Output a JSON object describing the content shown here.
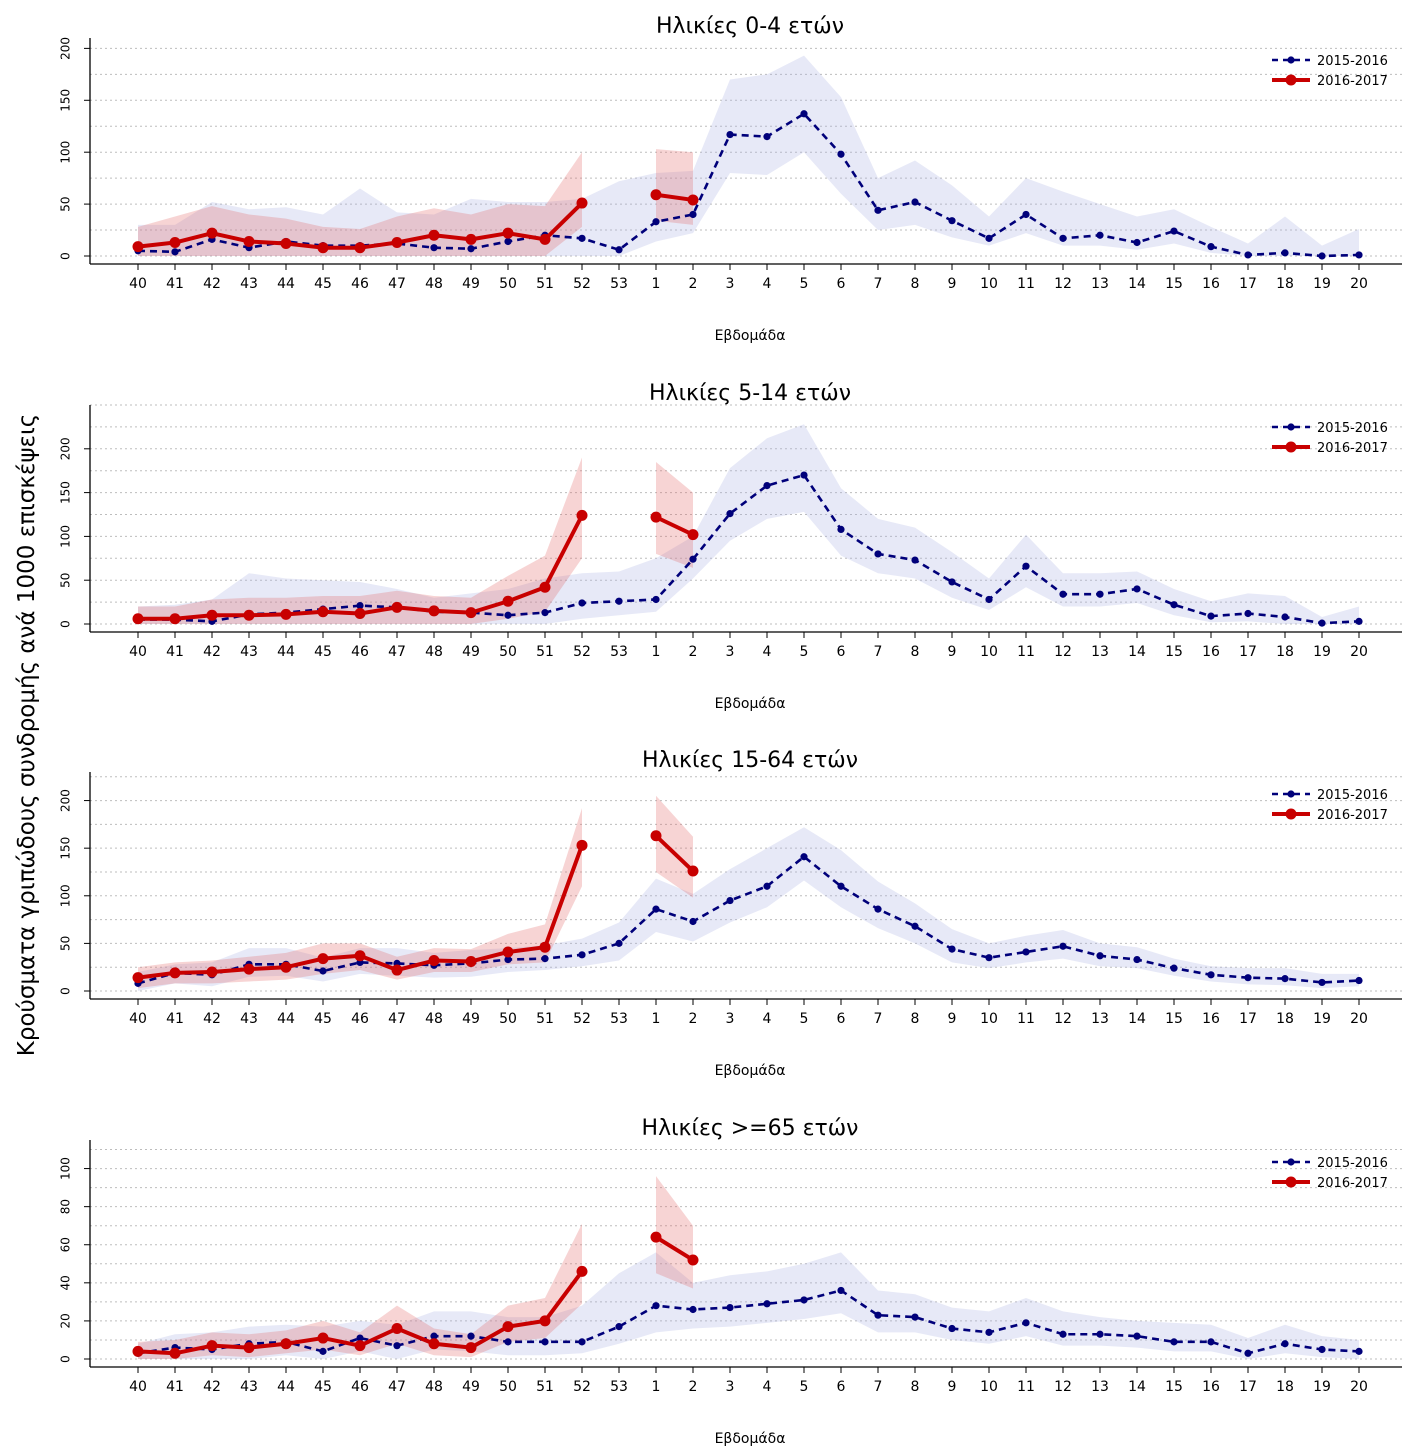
{
  "figure": {
    "ylabel": "Κρούσματα γριπώδους συνδρομής ανά 1000 επισκέψεις",
    "xlabel": "Εβδομάδα"
  },
  "chart_data": [
    {
      "type": "line",
      "title": "Ηλικίες 0-4 ετών",
      "xlabel": "Εβδομάδα",
      "ylabel": "Κρούσματα γριπώδους συνδρομής ανά 1000 επισκέψεις",
      "categories": [
        "40",
        "41",
        "42",
        "43",
        "44",
        "45",
        "46",
        "47",
        "48",
        "49",
        "50",
        "51",
        "52",
        "53",
        "1",
        "2",
        "3",
        "4",
        "5",
        "6",
        "7",
        "8",
        "9",
        "10",
        "11",
        "12",
        "13",
        "14",
        "15",
        "16",
        "17",
        "18",
        "19",
        "20"
      ],
      "yticks": [
        0,
        50,
        100,
        150,
        200
      ],
      "ylim": [
        0,
        210
      ],
      "legend_position": "top-right",
      "grid": "horizontal dotted",
      "series": [
        {
          "name": "2015-2016",
          "color": "#00007a",
          "style": "dashed",
          "values": [
            5,
            4,
            16,
            8,
            14,
            10,
            10,
            12,
            8,
            7,
            14,
            20,
            17,
            6,
            33,
            40,
            117,
            115,
            137,
            98,
            44,
            52,
            34,
            17,
            40,
            17,
            20,
            13,
            24,
            9,
            1,
            3,
            0,
            1
          ],
          "band_lower": [
            0,
            0,
            0,
            0,
            0,
            0,
            0,
            0,
            0,
            0,
            0,
            0,
            0,
            0,
            14,
            22,
            80,
            78,
            100,
            60,
            25,
            30,
            18,
            10,
            22,
            10,
            10,
            6,
            12,
            3,
            0,
            0,
            0,
            0
          ],
          "band_upper": [
            30,
            30,
            52,
            45,
            47,
            40,
            65,
            42,
            40,
            55,
            52,
            52,
            55,
            72,
            80,
            82,
            170,
            175,
            193,
            153,
            75,
            92,
            68,
            38,
            75,
            62,
            50,
            38,
            45,
            28,
            12,
            38,
            10,
            26
          ]
        },
        {
          "name": "2016-2017",
          "color": "#c80000",
          "style": "solid",
          "values": [
            9,
            13,
            22,
            14,
            12,
            8,
            8,
            13,
            20,
            16,
            22,
            16,
            51,
            null,
            59,
            54,
            null,
            null,
            null,
            null,
            null,
            null,
            null,
            null,
            null,
            null,
            null,
            null,
            null,
            null,
            null,
            null,
            null,
            null
          ],
          "band_lower": [
            0,
            0,
            0,
            0,
            0,
            0,
            0,
            0,
            0,
            0,
            0,
            0,
            28,
            null,
            34,
            30,
            null,
            null,
            null,
            null,
            null,
            null,
            null,
            null,
            null,
            null,
            null,
            null,
            null,
            null,
            null,
            null,
            null,
            null
          ],
          "band_upper": [
            28,
            38,
            48,
            40,
            36,
            28,
            26,
            38,
            46,
            40,
            50,
            48,
            100,
            null,
            103,
            100,
            null,
            null,
            null,
            null,
            null,
            null,
            null,
            null,
            null,
            null,
            null,
            null,
            null,
            null,
            null,
            null,
            null,
            null
          ]
        }
      ]
    },
    {
      "type": "line",
      "title": "Ηλικίες 5-14 ετών",
      "xlabel": "Εβδομάδα",
      "ylabel": "Κρούσματα γριπώδους συνδρομής ανά 1000 επισκέψεις",
      "categories": [
        "40",
        "41",
        "42",
        "43",
        "44",
        "45",
        "46",
        "47",
        "48",
        "49",
        "50",
        "51",
        "52",
        "53",
        "1",
        "2",
        "3",
        "4",
        "5",
        "6",
        "7",
        "8",
        "9",
        "10",
        "11",
        "12",
        "13",
        "14",
        "15",
        "16",
        "17",
        "18",
        "19",
        "20"
      ],
      "yticks": [
        0,
        50,
        100,
        150,
        200
      ],
      "ylim": [
        0,
        250
      ],
      "legend_position": "top-right",
      "grid": "horizontal dotted",
      "series": [
        {
          "name": "2015-2016",
          "color": "#00007a",
          "style": "dashed",
          "values": [
            5,
            5,
            3,
            11,
            13,
            17,
            21,
            19,
            14,
            13,
            10,
            13,
            24,
            26,
            28,
            74,
            126,
            158,
            170,
            108,
            80,
            73,
            48,
            28,
            66,
            34,
            34,
            40,
            22,
            9,
            12,
            8,
            1,
            3
          ],
          "band_lower": [
            0,
            0,
            0,
            0,
            0,
            0,
            0,
            0,
            0,
            0,
            0,
            0,
            6,
            10,
            14,
            52,
            95,
            120,
            128,
            78,
            58,
            52,
            30,
            16,
            42,
            20,
            20,
            24,
            10,
            2,
            3,
            0,
            0,
            0
          ],
          "band_upper": [
            20,
            22,
            28,
            58,
            52,
            50,
            48,
            40,
            30,
            35,
            40,
            52,
            58,
            60,
            75,
            100,
            178,
            212,
            228,
            155,
            120,
            110,
            82,
            52,
            102,
            58,
            58,
            60,
            40,
            26,
            35,
            32,
            8,
            20
          ]
        },
        {
          "name": "2016-2017",
          "color": "#c80000",
          "style": "solid",
          "values": [
            6,
            6,
            10,
            10,
            11,
            14,
            12,
            19,
            15,
            13,
            26,
            42,
            124,
            null,
            122,
            102,
            null,
            null,
            null,
            null,
            null,
            null,
            null,
            null,
            null,
            null,
            null,
            null,
            null,
            null,
            null,
            null,
            null,
            null
          ],
          "band_lower": [
            0,
            0,
            0,
            0,
            0,
            0,
            0,
            0,
            0,
            0,
            6,
            14,
            75,
            null,
            80,
            64,
            null,
            null,
            null,
            null,
            null,
            null,
            null,
            null,
            null,
            null,
            null,
            null,
            null,
            null,
            null,
            null,
            null,
            null
          ],
          "band_upper": [
            20,
            20,
            28,
            30,
            30,
            32,
            32,
            38,
            32,
            30,
            55,
            78,
            190,
            null,
            185,
            150,
            null,
            null,
            null,
            null,
            null,
            null,
            null,
            null,
            null,
            null,
            null,
            null,
            null,
            null,
            null,
            null,
            null,
            null
          ]
        }
      ]
    },
    {
      "type": "line",
      "title": "Ηλικίες 15-64 ετών",
      "xlabel": "Εβδομάδα",
      "ylabel": "Κρούσματα γριπώδους συνδρομής ανά 1000 επισκέψεις",
      "categories": [
        "40",
        "41",
        "42",
        "43",
        "44",
        "45",
        "46",
        "47",
        "48",
        "49",
        "50",
        "51",
        "52",
        "53",
        "1",
        "2",
        "3",
        "4",
        "5",
        "6",
        "7",
        "8",
        "9",
        "10",
        "11",
        "12",
        "13",
        "14",
        "15",
        "16",
        "17",
        "18",
        "19",
        "20"
      ],
      "yticks": [
        0,
        50,
        100,
        150,
        200
      ],
      "ylim": [
        0,
        230
      ],
      "legend_position": "top-right",
      "grid": "horizontal dotted",
      "series": [
        {
          "name": "2015-2016",
          "color": "#00007a",
          "style": "dashed",
          "values": [
            8,
            19,
            17,
            28,
            28,
            21,
            30,
            29,
            27,
            29,
            33,
            34,
            38,
            50,
            86,
            73,
            95,
            110,
            141,
            110,
            86,
            68,
            44,
            35,
            41,
            47,
            37,
            33,
            24,
            17,
            14,
            13,
            9,
            11
          ],
          "band_lower": [
            0,
            8,
            5,
            15,
            16,
            10,
            18,
            16,
            14,
            15,
            20,
            22,
            26,
            32,
            62,
            52,
            72,
            88,
            116,
            88,
            66,
            50,
            30,
            24,
            30,
            34,
            26,
            24,
            16,
            10,
            7,
            6,
            3,
            5
          ],
          "band_upper": [
            20,
            28,
            30,
            45,
            45,
            35,
            45,
            45,
            40,
            43,
            45,
            48,
            55,
            72,
            118,
            102,
            128,
            150,
            172,
            148,
            115,
            92,
            65,
            50,
            58,
            64,
            50,
            46,
            34,
            26,
            24,
            24,
            18,
            18
          ]
        },
        {
          "name": "2016-2017",
          "color": "#c80000",
          "style": "solid",
          "values": [
            14,
            19,
            20,
            23,
            25,
            34,
            37,
            22,
            32,
            31,
            41,
            46,
            153,
            null,
            163,
            126,
            null,
            null,
            null,
            null,
            null,
            null,
            null,
            null,
            null,
            null,
            null,
            null,
            null,
            null,
            null,
            null,
            null,
            null
          ],
          "band_lower": [
            3,
            8,
            8,
            10,
            12,
            18,
            22,
            12,
            20,
            20,
            28,
            30,
            110,
            null,
            125,
            98,
            null,
            null,
            null,
            null,
            null,
            null,
            null,
            null,
            null,
            null,
            null,
            null,
            null,
            null,
            null,
            null,
            null,
            null
          ],
          "band_upper": [
            25,
            30,
            32,
            36,
            40,
            50,
            50,
            36,
            45,
            44,
            60,
            70,
            192,
            null,
            205,
            162,
            null,
            null,
            null,
            null,
            null,
            null,
            null,
            null,
            null,
            null,
            null,
            null,
            null,
            null,
            null,
            null,
            null,
            null
          ]
        }
      ]
    },
    {
      "type": "line",
      "title": "Ηλικίες >=65 ετών",
      "xlabel": "Εβδομάδα",
      "ylabel": "Κρούσματα γριπώδους συνδρομής ανά 1000 επισκέψεις",
      "categories": [
        "40",
        "41",
        "42",
        "43",
        "44",
        "45",
        "46",
        "47",
        "48",
        "49",
        "50",
        "51",
        "52",
        "53",
        "1",
        "2",
        "3",
        "4",
        "5",
        "6",
        "7",
        "8",
        "9",
        "10",
        "11",
        "12",
        "13",
        "14",
        "15",
        "16",
        "17",
        "18",
        "19",
        "20"
      ],
      "yticks": [
        0,
        20,
        40,
        60,
        80,
        100
      ],
      "ylim": [
        0,
        115
      ],
      "legend_position": "top-right",
      "grid": "horizontal dotted",
      "series": [
        {
          "name": "2015-2016",
          "color": "#00007a",
          "style": "dashed",
          "values": [
            3,
            6,
            5,
            8,
            9,
            4,
            11,
            7,
            12,
            12,
            9,
            9,
            9,
            17,
            28,
            26,
            27,
            29,
            31,
            36,
            23,
            22,
            16,
            14,
            19,
            13,
            13,
            12,
            9,
            9,
            3,
            8,
            5,
            4
          ],
          "band_lower": [
            0,
            0,
            0,
            0,
            2,
            0,
            4,
            0,
            5,
            4,
            2,
            2,
            3,
            8,
            14,
            16,
            17,
            19,
            21,
            24,
            14,
            14,
            10,
            8,
            12,
            7,
            7,
            6,
            4,
            4,
            0,
            3,
            1,
            0
          ],
          "band_upper": [
            8,
            13,
            14,
            17,
            18,
            17,
            20,
            18,
            25,
            25,
            22,
            22,
            28,
            45,
            56,
            40,
            44,
            46,
            50,
            56,
            36,
            34,
            27,
            25,
            32,
            25,
            22,
            20,
            19,
            18,
            11,
            18,
            12,
            10
          ]
        },
        {
          "name": "2016-2017",
          "color": "#c80000",
          "style": "solid",
          "values": [
            4,
            3,
            7,
            6,
            8,
            11,
            7,
            16,
            8,
            6,
            17,
            20,
            46,
            null,
            64,
            52,
            null,
            null,
            null,
            null,
            null,
            null,
            null,
            null,
            null,
            null,
            null,
            null,
            null,
            null,
            null,
            null,
            null,
            null
          ],
          "band_lower": [
            0,
            0,
            2,
            1,
            3,
            5,
            2,
            8,
            2,
            1,
            9,
            11,
            29,
            null,
            45,
            37,
            null,
            null,
            null,
            null,
            null,
            null,
            null,
            null,
            null,
            null,
            null,
            null,
            null,
            null,
            null,
            null,
            null,
            null
          ],
          "band_upper": [
            9,
            10,
            14,
            13,
            15,
            20,
            14,
            28,
            16,
            13,
            28,
            32,
            71,
            null,
            96,
            70,
            null,
            null,
            null,
            null,
            null,
            null,
            null,
            null,
            null,
            null,
            null,
            null,
            null,
            null,
            null,
            null,
            null,
            null
          ]
        }
      ]
    }
  ]
}
